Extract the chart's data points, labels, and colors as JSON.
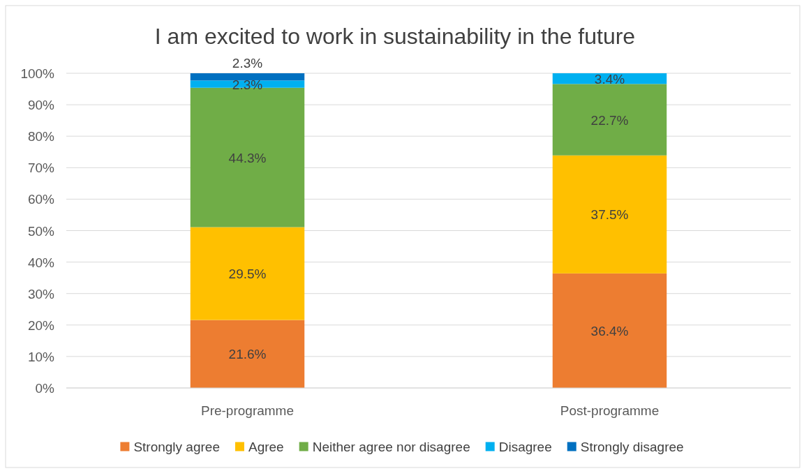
{
  "chart_data": {
    "type": "bar",
    "stacked": true,
    "title": "I am excited to work in sustainability in the future",
    "categories": [
      "Pre-programme",
      "Post-programme"
    ],
    "series": [
      {
        "name": "Strongly agree",
        "color": "#ed7d31",
        "values": [
          21.6,
          36.4
        ],
        "value_labels": [
          "21.6%",
          "36.4%"
        ]
      },
      {
        "name": "Agree",
        "color": "#ffc000",
        "values": [
          29.5,
          37.5
        ],
        "value_labels": [
          "29.5%",
          "37.5%"
        ]
      },
      {
        "name": "Neither agree nor disagree",
        "color": "#70ad47",
        "values": [
          44.3,
          22.7
        ],
        "value_labels": [
          "44.3%",
          "22.7%"
        ]
      },
      {
        "name": "Disagree",
        "color": "#00b0f0",
        "values": [
          2.3,
          3.4
        ],
        "value_labels": [
          "2.3%",
          "3.4%"
        ]
      },
      {
        "name": "Strongly disagree",
        "color": "#0070c0",
        "values": [
          2.3,
          null
        ],
        "value_labels": [
          "2.3%",
          null
        ]
      }
    ],
    "ylim": [
      0,
      100
    ],
    "yticks": [
      {
        "value": 0,
        "label": "0%"
      },
      {
        "value": 10,
        "label": "10%"
      },
      {
        "value": 20,
        "label": "20%"
      },
      {
        "value": 30,
        "label": "30%"
      },
      {
        "value": 40,
        "label": "40%"
      },
      {
        "value": 50,
        "label": "50%"
      },
      {
        "value": 60,
        "label": "60%"
      },
      {
        "value": 70,
        "label": "70%"
      },
      {
        "value": 80,
        "label": "80%"
      },
      {
        "value": 90,
        "label": "90%"
      },
      {
        "value": 100,
        "label": "100%"
      }
    ],
    "grid": "y",
    "legend": "bottom"
  }
}
